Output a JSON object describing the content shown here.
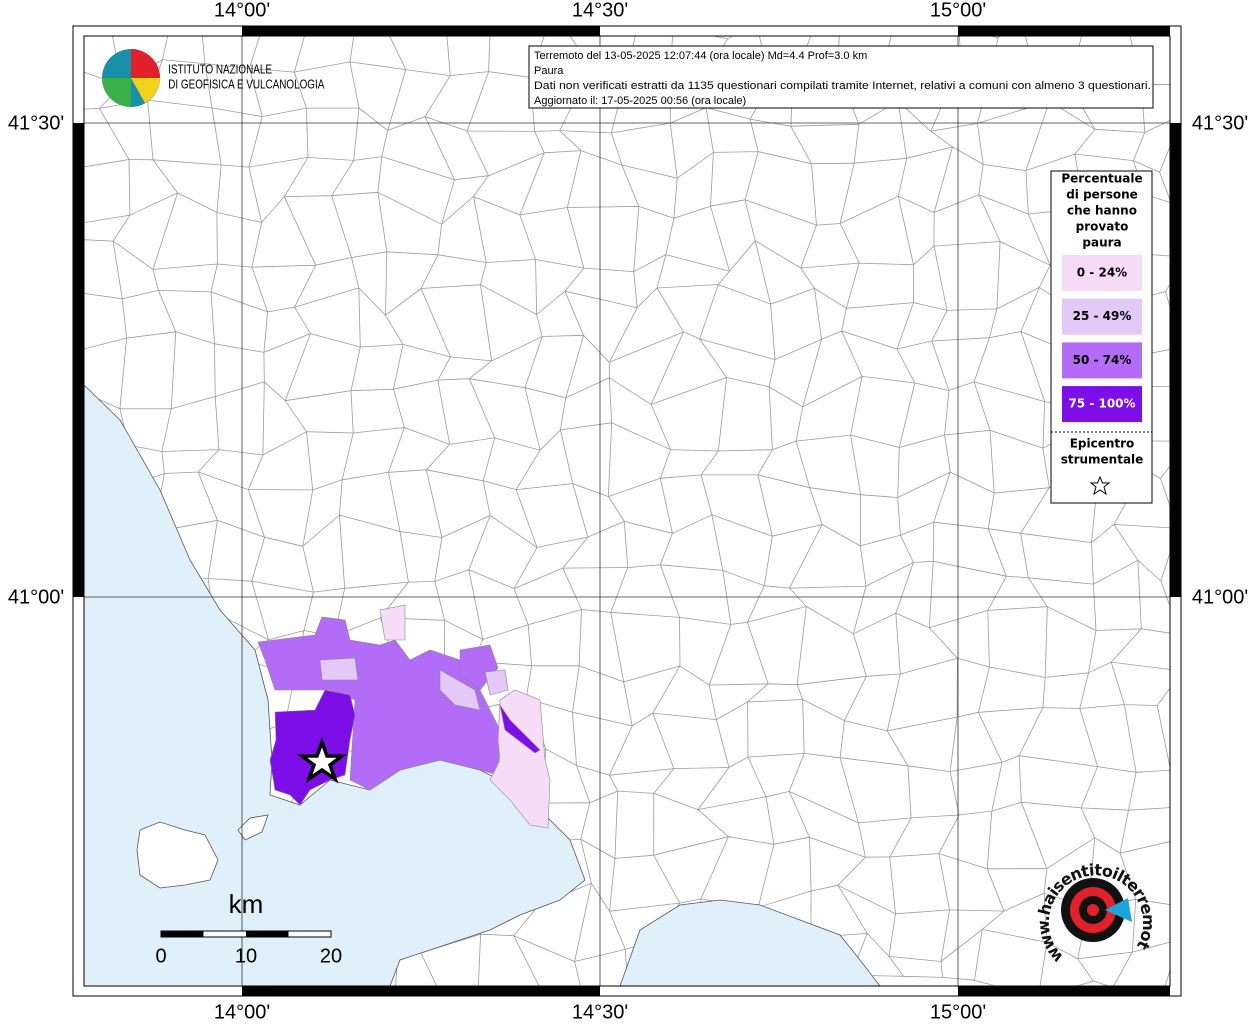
{
  "frame": {
    "top_labels": [
      "14°00'",
      "14°30'",
      "15°00'"
    ],
    "bottom_labels": [
      "14°00'",
      "14°30'",
      "15°00'"
    ],
    "left_labels": [
      "41°30'",
      "41°00'"
    ],
    "right_labels": [
      "41°30'",
      "41°00'"
    ]
  },
  "logo": {
    "line1": "ISTITUTO NAZIONALE",
    "line2": "DI GEOFISICA E VULCANOLOGIA"
  },
  "info": [
    "Terremoto del 13-05-2025 12:07:44 (ora locale) Md=4.4 Prof=3.0 km",
    "Paura",
    "Dati non verificati estratti da 1135 questionari compilati tramite Internet, relativi a comuni con almeno 3 questionari.",
    "Aggiornato il: 17-05-2025 00:56 (ora locale)"
  ],
  "legend": {
    "title": [
      "Percentuale",
      "di persone",
      "che hanno",
      "provato",
      "paura"
    ],
    "items": [
      {
        "label": "0 - 24%",
        "color": "#f7dcf8",
        "text_color": "#000000"
      },
      {
        "label": "25 - 49%",
        "color": "#e2c9f7",
        "text_color": "#000000"
      },
      {
        "label": "50 - 74%",
        "color": "#b36cf7",
        "text_color": "#000000"
      },
      {
        "label": "75 - 100%",
        "color": "#7d0ee8",
        "text_color": "#ffffff"
      }
    ],
    "epicenter": [
      "Epicentro",
      "strumentale"
    ]
  },
  "scale": {
    "unit": "km",
    "labels": [
      "0",
      "10",
      "20"
    ]
  },
  "watermark": {
    "text": "www.haisentitoilterremoto.it"
  }
}
